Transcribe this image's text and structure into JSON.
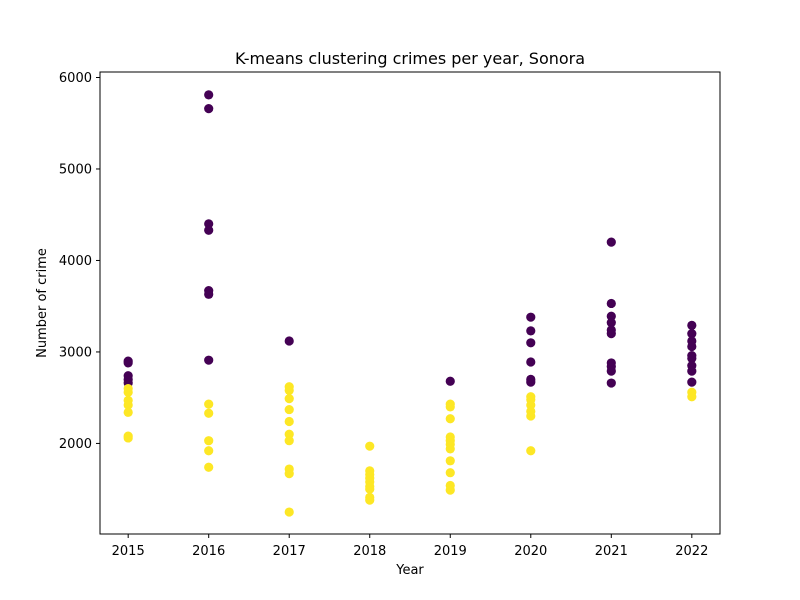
{
  "chart_data": {
    "type": "scatter",
    "title": "K-means clustering crimes per year, Sonora",
    "xlabel": "Year",
    "ylabel": "Number of crime",
    "x_ticks": [
      2015,
      2016,
      2017,
      2018,
      2019,
      2020,
      2021,
      2022
    ],
    "y_ticks": [
      2000,
      3000,
      4000,
      5000,
      6000
    ],
    "xlim": [
      2014.65,
      2022.35
    ],
    "ylim": [
      1010,
      6060
    ],
    "grid": false,
    "legend": "none",
    "series": [
      {
        "color": "#440154",
        "points": [
          [
            2015,
            2900
          ],
          [
            2015,
            2880
          ],
          [
            2015,
            2740
          ],
          [
            2015,
            2700
          ],
          [
            2015,
            2660
          ],
          [
            2016,
            5810
          ],
          [
            2016,
            5660
          ],
          [
            2016,
            4400
          ],
          [
            2016,
            4330
          ],
          [
            2016,
            3670
          ],
          [
            2016,
            3630
          ],
          [
            2016,
            2910
          ],
          [
            2017,
            3120
          ],
          [
            2019,
            2680
          ],
          [
            2020,
            3380
          ],
          [
            2020,
            3230
          ],
          [
            2020,
            3100
          ],
          [
            2020,
            2890
          ],
          [
            2020,
            2700
          ],
          [
            2020,
            2670
          ],
          [
            2021,
            4200
          ],
          [
            2021,
            3530
          ],
          [
            2021,
            3390
          ],
          [
            2021,
            3320
          ],
          [
            2021,
            3240
          ],
          [
            2021,
            3200
          ],
          [
            2021,
            2880
          ],
          [
            2021,
            2840
          ],
          [
            2021,
            2790
          ],
          [
            2021,
            2660
          ],
          [
            2022,
            3290
          ],
          [
            2022,
            3200
          ],
          [
            2022,
            3120
          ],
          [
            2022,
            3060
          ],
          [
            2022,
            2960
          ],
          [
            2022,
            2930
          ],
          [
            2022,
            2850
          ],
          [
            2022,
            2790
          ],
          [
            2022,
            2670
          ]
        ]
      },
      {
        "color": "#fde725",
        "points": [
          [
            2015,
            2600
          ],
          [
            2015,
            2560
          ],
          [
            2015,
            2470
          ],
          [
            2015,
            2420
          ],
          [
            2015,
            2340
          ],
          [
            2015,
            2080
          ],
          [
            2015,
            2060
          ],
          [
            2016,
            2430
          ],
          [
            2016,
            2330
          ],
          [
            2016,
            2030
          ],
          [
            2016,
            1920
          ],
          [
            2016,
            1740
          ],
          [
            2017,
            2620
          ],
          [
            2017,
            2580
          ],
          [
            2017,
            2490
          ],
          [
            2017,
            2370
          ],
          [
            2017,
            2240
          ],
          [
            2017,
            2100
          ],
          [
            2017,
            2030
          ],
          [
            2017,
            1720
          ],
          [
            2017,
            1670
          ],
          [
            2017,
            1250
          ],
          [
            2018,
            1970
          ],
          [
            2018,
            1700
          ],
          [
            2018,
            1660
          ],
          [
            2018,
            1620
          ],
          [
            2018,
            1580
          ],
          [
            2018,
            1530
          ],
          [
            2018,
            1500
          ],
          [
            2018,
            1410
          ],
          [
            2018,
            1380
          ],
          [
            2019,
            2430
          ],
          [
            2019,
            2400
          ],
          [
            2019,
            2270
          ],
          [
            2019,
            2070
          ],
          [
            2019,
            2030
          ],
          [
            2019,
            1990
          ],
          [
            2019,
            1940
          ],
          [
            2019,
            1810
          ],
          [
            2019,
            1680
          ],
          [
            2019,
            1540
          ],
          [
            2019,
            1490
          ],
          [
            2020,
            2510
          ],
          [
            2020,
            2480
          ],
          [
            2020,
            2420
          ],
          [
            2020,
            2350
          ],
          [
            2020,
            2300
          ],
          [
            2020,
            1920
          ],
          [
            2022,
            2560
          ],
          [
            2022,
            2510
          ]
        ]
      }
    ]
  }
}
